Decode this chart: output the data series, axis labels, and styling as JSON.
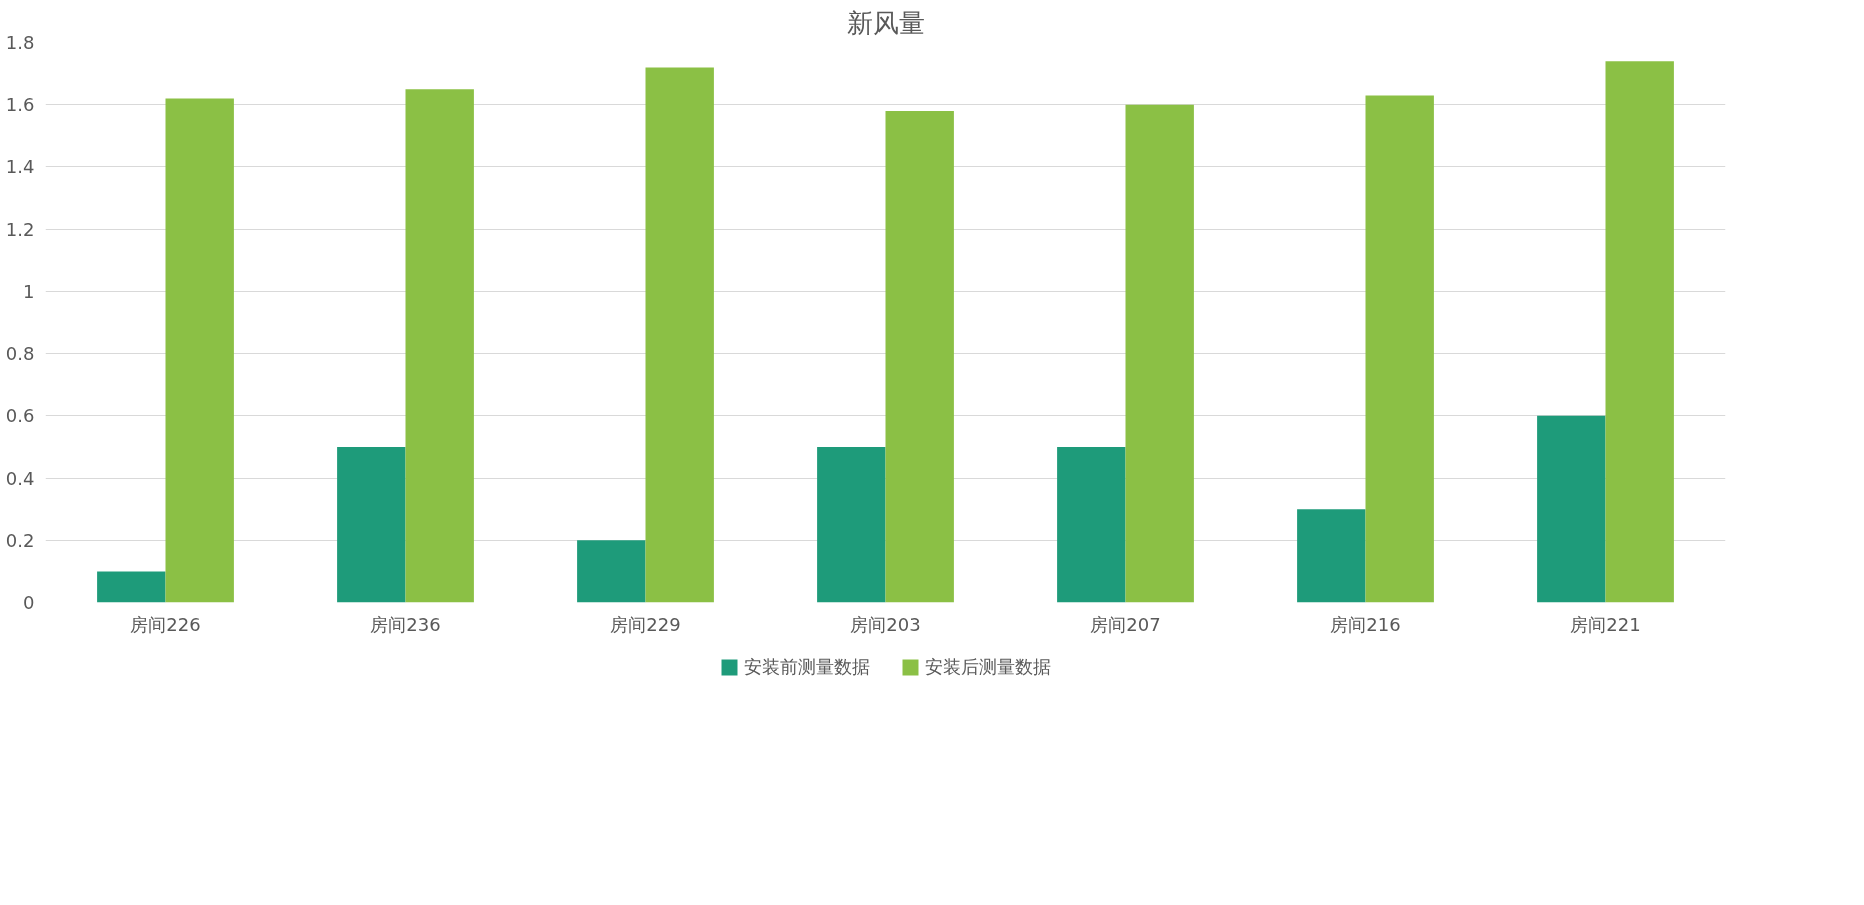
{
  "chart_data": {
    "type": "bar",
    "title": "新风量",
    "categories": [
      "房间226",
      "房间236",
      "房间229",
      "房间203",
      "房间207",
      "房间216",
      "房间221"
    ],
    "series": [
      {
        "name": "安装前测量数据",
        "color": "#1e9b7a",
        "values": [
          0.1,
          0.5,
          0.2,
          0.5,
          0.5,
          0.3,
          0.6
        ]
      },
      {
        "name": "安装后测量数据",
        "color": "#8bc045",
        "values": [
          1.62,
          1.65,
          1.72,
          1.58,
          1.6,
          1.63,
          1.74
        ]
      }
    ],
    "ylim": [
      0,
      1.8
    ],
    "yticks": [
      0,
      0.2,
      0.4,
      0.6,
      0.8,
      {
        "value": 1,
        "label": "1"
      },
      1.2,
      1.4,
      1.6,
      1.8
    ],
    "grid": "y",
    "legend": "bottom"
  }
}
